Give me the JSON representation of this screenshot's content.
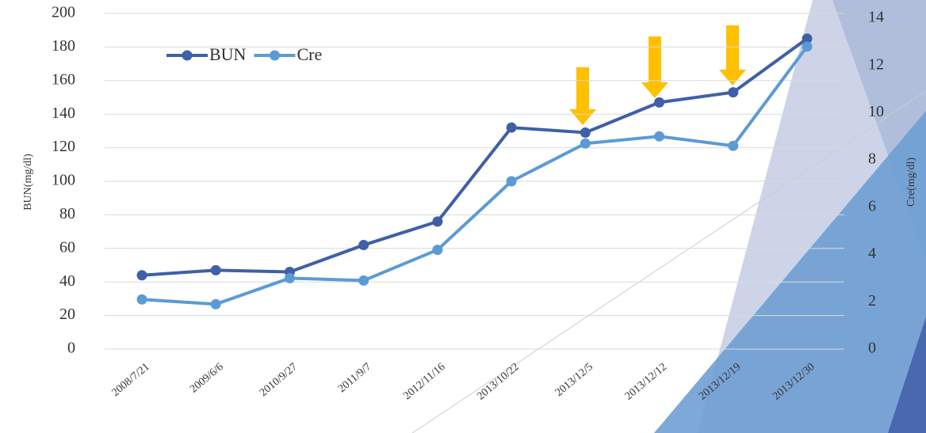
{
  "chart_data": {
    "type": "line",
    "categories": [
      "2008/7/21",
      "2009/6/6",
      "2010/9/27",
      "2011/9/7",
      "2012/11/16",
      "2013/10/22",
      "2013/12/5",
      "2013/12/12",
      "2013/12/19",
      "2013/12/30"
    ],
    "series": [
      {
        "name": "BUN",
        "color": "#3f5fa8",
        "values": [
          44,
          47,
          46,
          62,
          76,
          132,
          129,
          147,
          153,
          185
        ]
      },
      {
        "name": "Cre",
        "color": "#5b9bd5",
        "axis": "y2",
        "values": [
          2.1,
          1.9,
          3.0,
          2.9,
          4.2,
          7.1,
          8.7,
          9.0,
          8.6,
          12.8
        ]
      }
    ],
    "y_label": "BUN(mg/dl)",
    "y2_label": "Cre(mg/dl)",
    "ylim": [
      0,
      200
    ],
    "yticks": [
      0,
      20,
      40,
      60,
      80,
      100,
      120,
      140,
      160,
      180,
      200
    ],
    "y2lim": [
      0,
      14
    ],
    "y2ticks": [
      0,
      2,
      4,
      6,
      8,
      10,
      12,
      14
    ],
    "grid": true,
    "legend": "upper left"
  }
}
